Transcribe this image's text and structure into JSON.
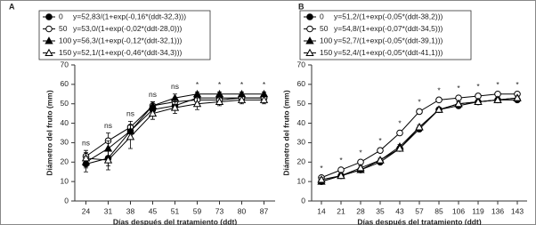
{
  "chart_data": [
    {
      "type": "line",
      "panel": "A",
      "ylabel": "Diámetro del fruto (mm)",
      "xlabel": "Días después del tratamiento (ddt)",
      "categories": [
        "24",
        "31",
        "38",
        "45",
        "51",
        "59",
        "73",
        "80",
        "87"
      ],
      "ylim": [
        0,
        70
      ],
      "yticks": [
        0,
        10,
        20,
        30,
        40,
        50,
        60,
        70
      ],
      "significance": [
        "ns",
        "ns",
        "ns",
        "ns",
        "ns",
        "*",
        "*",
        "*",
        "*"
      ],
      "series": [
        {
          "name": "0",
          "equation": "y=52,83/(1+exp(-0,16*(ddt-32,3)))",
          "color": "#000000",
          "marker": "circle-filled",
          "values": [
            19,
            22,
            36,
            47,
            49,
            53,
            53,
            53,
            53
          ],
          "errors": [
            4,
            4,
            3,
            2,
            2,
            2,
            2,
            2,
            2
          ]
        },
        {
          "name": "50",
          "equation": "y=53,0/(1+exp(-0,02*(ddt-28,0)))",
          "color": "#000000",
          "marker": "circle-open",
          "values": [
            23,
            31,
            38,
            49,
            51,
            52,
            52,
            53,
            53
          ],
          "errors": [
            3,
            4,
            3,
            2,
            2,
            1,
            1,
            1,
            1
          ]
        },
        {
          "name": "100",
          "equation": "y=56,3/(1+exp(-0,12*(ddt-32,1)))",
          "color": "#000000",
          "marker": "triangle-filled",
          "values": [
            20,
            27,
            36,
            49,
            53,
            55,
            55,
            55,
            55
          ],
          "errors": [
            3,
            4,
            3,
            2,
            2,
            1,
            1,
            1,
            1
          ]
        },
        {
          "name": "150",
          "equation": "y=52,1/(1+exp(-0,46*(ddt-34,3)))",
          "color": "#000000",
          "marker": "triangle-open",
          "values": [
            22,
            21,
            33,
            45,
            48,
            50,
            51,
            52,
            52
          ],
          "errors": [
            3,
            5,
            6,
            3,
            3,
            3,
            2,
            2,
            2
          ]
        }
      ]
    },
    {
      "type": "line",
      "panel": "B",
      "ylabel": "Diámetro del fruto (mm)",
      "xlabel": "Días después del tratamiento (ddt)",
      "categories": [
        "14",
        "21",
        "28",
        "35",
        "43",
        "57",
        "85",
        "106",
        "119",
        "136",
        "143"
      ],
      "ylim": [
        0,
        70
      ],
      "yticks": [
        0,
        10,
        20,
        30,
        40,
        50,
        60,
        70
      ],
      "significance": [
        "*",
        "*",
        "*",
        "*",
        "*",
        "*",
        "*",
        "*",
        "*",
        "*",
        "*"
      ],
      "series": [
        {
          "name": "0",
          "equation": "y=51,2/(1+exp(-0,05*(ddt-38,2)))",
          "color": "#000000",
          "marker": "circle-filled",
          "values": [
            10,
            13,
            16,
            20,
            27,
            37,
            47,
            49,
            51,
            52,
            52
          ],
          "errors": [
            1,
            1,
            1,
            1,
            1,
            1,
            1,
            1,
            1,
            1,
            1
          ]
        },
        {
          "name": "50",
          "equation": "y=54,8/(1+exp(-0,07*(ddt-34,5)))",
          "color": "#000000",
          "marker": "circle-open",
          "values": [
            12,
            16,
            20,
            26,
            35,
            46,
            52,
            53,
            54,
            55,
            55
          ],
          "errors": [
            1,
            1,
            1,
            1,
            1,
            1,
            1,
            1,
            1,
            1,
            1
          ]
        },
        {
          "name": "100",
          "equation": "y=52,7/(1+exp(-0,05*(ddt-39,1)))",
          "color": "#000000",
          "marker": "triangle-filled",
          "values": [
            10,
            13,
            16,
            21,
            28,
            38,
            47,
            50,
            51,
            52,
            53
          ],
          "errors": [
            1,
            1,
            1,
            1,
            1,
            1,
            1,
            1,
            1,
            1,
            1
          ]
        },
        {
          "name": "150",
          "equation": "y=52,4/(1+exp(-0,05*(ddt-41,1)))",
          "color": "#000000",
          "marker": "triangle-open",
          "values": [
            11,
            13,
            17,
            21,
            27,
            38,
            47,
            50,
            51,
            52,
            53
          ],
          "errors": [
            1,
            1,
            1,
            1,
            1,
            1,
            1,
            1,
            1,
            1,
            1
          ]
        }
      ]
    }
  ]
}
